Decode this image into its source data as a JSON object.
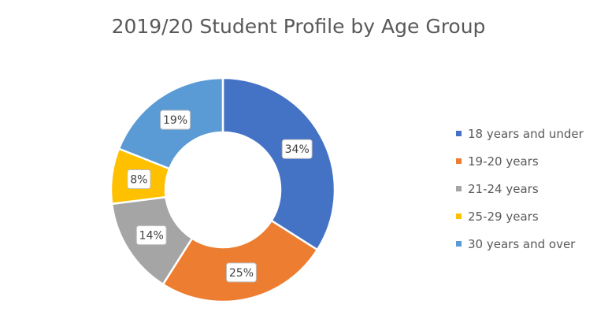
{
  "chart_data": {
    "type": "pie",
    "variant": "doughnut",
    "title": "2019/20 Student Profile by Age Group",
    "categories": [
      "18 years and under",
      "19-20 years",
      "21-24 years",
      "25-29 years",
      "30 years and over"
    ],
    "values": [
      34,
      25,
      14,
      8,
      19
    ],
    "data_labels": [
      "34%",
      "25%",
      "14%",
      "8%",
      "19%"
    ],
    "colors": [
      "#4472C4",
      "#ED7D31",
      "#A5A5A5",
      "#FFC000",
      "#5B9BD5"
    ],
    "legend_position": "right"
  }
}
